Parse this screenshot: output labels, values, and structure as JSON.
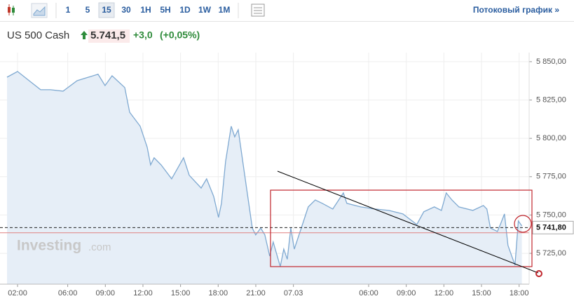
{
  "toolbar": {
    "intervals": [
      "1",
      "5",
      "15",
      "30",
      "1H",
      "5H",
      "1D",
      "1W",
      "1M"
    ],
    "selected_index": 2,
    "link": "Потоковый график »"
  },
  "quote": {
    "name": "US 500 Cash",
    "price": "5.741,5",
    "change": "+3,0",
    "change_percent": "(+0,05%)"
  },
  "watermark": {
    "brand": "Investing",
    "suffix": ".com"
  },
  "chart_data": {
    "type": "area",
    "color": "#7fa9d1",
    "fill": "#e6eef7",
    "grid": true,
    "x": [
      1.16,
      2.0,
      3.12,
      3.84,
      4.63,
      5.63,
      6.75,
      8.42,
      8.98,
      9.54,
      10.55,
      10.94,
      11.78,
      12.34,
      12.61,
      12.89,
      13.45,
      14.29,
      15.24,
      15.69,
      16.64,
      17.08,
      17.64,
      18.03,
      18.26,
      18.59,
      19.04,
      19.32,
      19.6,
      20.16,
      20.72,
      20.99,
      21.39,
      21.72,
      22.11,
      22.39,
      22.95,
      23.23,
      23.51,
      23.79,
      24.07,
      24.63,
      25.18,
      25.74,
      26.3,
      27.14,
      27.98,
      28.26,
      29.37,
      30.49,
      31.61,
      32.73,
      33.84,
      34.4,
      35.24,
      35.8,
      36.19,
      36.64,
      37.2,
      38.31,
      39.15,
      39.43,
      39.71,
      40.27,
      40.55,
      40.83,
      41.11,
      41.67,
      41.94,
      42.22
    ],
    "values": [
      5839.9,
      5843.6,
      5836.3,
      5831.7,
      5831.7,
      5830.8,
      5837.6,
      5841.8,
      5834.4,
      5840.8,
      5833.1,
      5817.0,
      5807.9,
      5794.2,
      5782.7,
      5787.3,
      5782.7,
      5773.6,
      5787.3,
      5775.9,
      5767.6,
      5773.6,
      5762.1,
      5748.4,
      5757.6,
      5785.0,
      5807.9,
      5801.0,
      5805.6,
      5773.6,
      5741.5,
      5737.0,
      5741.5,
      5737.0,
      5723.2,
      5732.4,
      5716.4,
      5727.8,
      5721.1,
      5741.5,
      5727.8,
      5741.5,
      5755.3,
      5759.8,
      5757.6,
      5753.9,
      5764.4,
      5757.6,
      5755.3,
      5753.9,
      5753.0,
      5750.7,
      5743.8,
      5752.1,
      5755.3,
      5753.0,
      5764.4,
      5759.8,
      5755.3,
      5753.0,
      5756.2,
      5753.9,
      5741.5,
      5739.2,
      5744.7,
      5750.7,
      5730.1,
      5717.3,
      5746.1,
      5742.9
    ],
    "xlim": [
      0.6,
      42.8
    ],
    "xticks": [
      {
        "value": 2,
        "label": "02:00"
      },
      {
        "value": 6,
        "label": "06:00"
      },
      {
        "value": 9,
        "label": "09:00"
      },
      {
        "value": 12,
        "label": "12:00"
      },
      {
        "value": 15,
        "label": "15:00"
      },
      {
        "value": 18,
        "label": "18:00"
      },
      {
        "value": 21,
        "label": "21:00"
      },
      {
        "value": 24,
        "label": "07.03"
      },
      {
        "value": 30,
        "label": "06:00"
      },
      {
        "value": 33,
        "label": "09:00"
      },
      {
        "value": 36,
        "label": "12:00"
      },
      {
        "value": 39,
        "label": "15:00"
      },
      {
        "value": 42,
        "label": "18:00"
      }
    ],
    "ylim": [
      5704.9,
      5855.9
    ],
    "yticks": [
      {
        "value": 5850,
        "label": "5 850,00"
      },
      {
        "value": 5825,
        "label": "5 825,00"
      },
      {
        "value": 5800,
        "label": "5 800,00"
      },
      {
        "value": 5775,
        "label": "5 775,00"
      },
      {
        "value": 5750,
        "label": "5 750,00"
      },
      {
        "value": 5725,
        "label": "5 725,00"
      }
    ],
    "last_price": {
      "value": 5741.8,
      "label": "5 741,80"
    },
    "close_line": 5738.4
  }
}
